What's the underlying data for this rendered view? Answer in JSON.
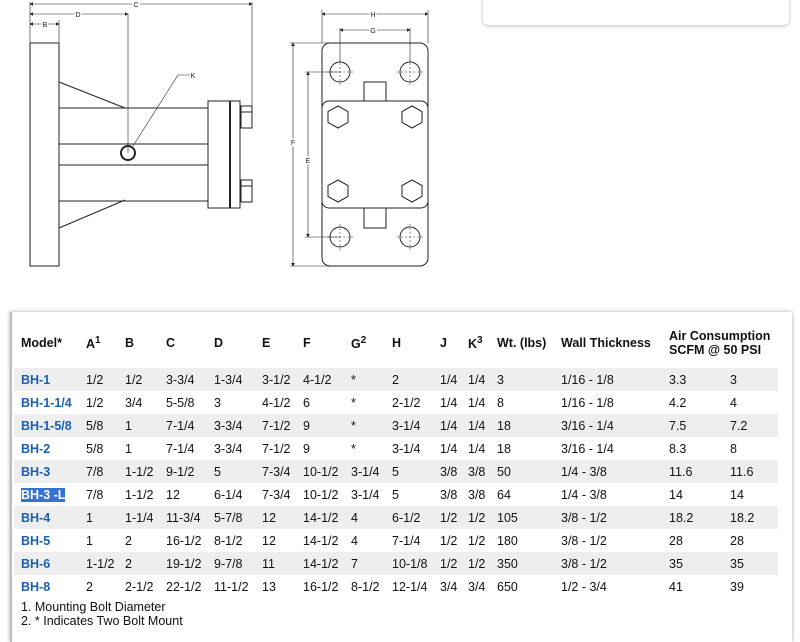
{
  "drawing_labels": {
    "c": "C",
    "d": "D",
    "b": "B",
    "k": "K",
    "h": "H",
    "g": "G",
    "f": "F",
    "e": "E"
  },
  "table": {
    "headers": [
      {
        "label": "Model*",
        "sup": ""
      },
      {
        "label": "A",
        "sup": "1"
      },
      {
        "label": "B",
        "sup": ""
      },
      {
        "label": "C",
        "sup": ""
      },
      {
        "label": "D",
        "sup": ""
      },
      {
        "label": "E",
        "sup": ""
      },
      {
        "label": "F",
        "sup": ""
      },
      {
        "label": "G",
        "sup": "2"
      },
      {
        "label": "H",
        "sup": ""
      },
      {
        "label": "J",
        "sup": ""
      },
      {
        "label": "K",
        "sup": "3"
      },
      {
        "label": "Wt. (lbs)",
        "sup": ""
      },
      {
        "label": "Wall Thickness",
        "sup": ""
      }
    ],
    "air_header_line1": "Air Consumption",
    "air_header_line2": "SCFM @ 50 PSI",
    "rows": [
      [
        "BH-1",
        "1/2",
        "1/2",
        "3-3/4",
        "1-3/4",
        "3-1/2",
        "4-1/2",
        "*",
        "2",
        "1/4",
        "1/4",
        "3",
        "1/16 - 1/8",
        "3.3",
        "3"
      ],
      [
        "BH-1-1/4",
        "1/2",
        "3/4",
        "5-5/8",
        "3",
        "4-1/2",
        "6",
        "*",
        "2-1/2",
        "1/4",
        "1/4",
        "8",
        "1/16 - 1/8",
        "4.2",
        "4"
      ],
      [
        "BH-1-5/8",
        "5/8",
        "1",
        "7-1/4",
        "3-3/4",
        "7-1/2",
        "9",
        "*",
        "3-1/4",
        "1/4",
        "1/4",
        "18",
        "3/16 - 1/4",
        "7.5",
        "7.2"
      ],
      [
        "BH-2",
        "5/8",
        "1",
        "7-1/4",
        "3-3/4",
        "7-1/2",
        "9",
        "*",
        "3-1/4",
        "1/4",
        "1/4",
        "18",
        "3/16 - 1/4",
        "8.3",
        "8"
      ],
      [
        "BH-3",
        "7/8",
        "1-1/2",
        "9-1/2",
        "5",
        "7-3/4",
        "10-1/2",
        "3-1/4",
        "5",
        "3/8",
        "3/8",
        "50",
        "1/4 - 3/8",
        "11.6",
        "11.6"
      ],
      [
        "BH-3 -L",
        "7/8",
        "1-1/2",
        "12",
        "6-1/4",
        "7-3/4",
        "10-1/2",
        "3-1/4",
        "5",
        "3/8",
        "3/8",
        "64",
        "1/4 - 3/8",
        "14",
        "14"
      ],
      [
        "BH-4",
        "1",
        "1-1/4",
        "11-3/4",
        "5-7/8",
        "12",
        "14-1/2",
        "4",
        "6-1/2",
        "1/2",
        "1/2",
        "105",
        "3/8 - 1/2",
        "18.2",
        "18.2"
      ],
      [
        "BH-5",
        "1",
        "2",
        "16-1/2",
        "8-1/2",
        "12",
        "14-1/2",
        "4",
        "7-1/4",
        "1/2",
        "1/2",
        "180",
        "3/8 - 1/2",
        "28",
        "28"
      ],
      [
        "BH-6",
        "1-1/2",
        "2",
        "19-1/2",
        "9-7/8",
        "11",
        "14-1/2",
        "7",
        "10-1/8",
        "1/2",
        "1/2",
        "350",
        "3/8 - 1/2",
        "35",
        "35"
      ],
      [
        "BH-8",
        "2",
        "2-1/2",
        "22-1/2",
        "11-1/2",
        "13",
        "16-1/2",
        "8-1/2",
        "12-1/4",
        "3/4",
        "3/4",
        "650",
        "1/2 - 3/4",
        "41",
        "39"
      ]
    ],
    "selected_model": "BH-3 -L"
  },
  "footnotes": [
    "1. Mounting Bolt Diameter",
    "2. * Indicates Two Bolt Mount"
  ],
  "colors": {
    "model_link": "#1a5fb4",
    "selection": "#3373d6",
    "row_stripe": "#eeeeee"
  }
}
